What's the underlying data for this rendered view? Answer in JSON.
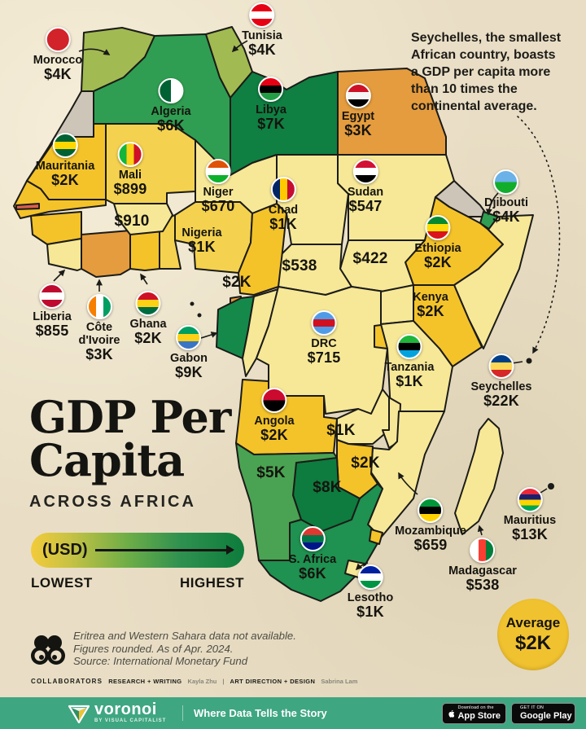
{
  "title": {
    "line1": "GDP Per",
    "line2": "Capita",
    "subtitle": "ACROSS AFRICA"
  },
  "legend": {
    "unit_label": "(USD)",
    "low_label": "LOWEST",
    "high_label": "HIGHEST",
    "gradient_colors": [
      "#f3cb3a",
      "#6fae47",
      "#0d7c3c"
    ]
  },
  "annotation": {
    "line1": "Seychelles, the smallest",
    "line2": "African country, boasts",
    "line3": "a GDP per capita more",
    "line4_pre": "than ",
    "line4_bold": "10 times",
    "line4_post": " the",
    "line5": "continental average."
  },
  "average_badge": {
    "label": "Average",
    "value": "$2K",
    "color": "#f1c230"
  },
  "chart_data": {
    "type": "choropleth-map",
    "title": "GDP Per Capita Across Africa",
    "unit": "USD",
    "entries": [
      {
        "id": "morocco",
        "name": "Morocco",
        "value": "$4K",
        "fill": "#a2ba52",
        "flag": {
          "dir": "h",
          "colors": [
            "#d2232a"
          ]
        }
      },
      {
        "id": "tunisia",
        "name": "Tunisia",
        "value": "$4K",
        "fill": "#a2ba52",
        "flag": {
          "dir": "h",
          "colors": [
            "#e70013",
            "#ffffff",
            "#e70013"
          ]
        }
      },
      {
        "id": "algeria",
        "name": "Algeria",
        "value": "$6K",
        "fill": "#2f9e52",
        "flag": {
          "dir": "v",
          "colors": [
            "#006233",
            "#ffffff"
          ]
        }
      },
      {
        "id": "libya",
        "name": "Libya",
        "value": "$7K",
        "fill": "#0f7f42",
        "flag": {
          "dir": "h",
          "colors": [
            "#e70013",
            "#000000",
            "#239e46"
          ]
        }
      },
      {
        "id": "egypt",
        "name": "Egypt",
        "value": "$3K",
        "fill": "#e59c3e",
        "flag": {
          "dir": "h",
          "colors": [
            "#ce1126",
            "#f5f5f5",
            "#000000"
          ]
        }
      },
      {
        "id": "mauritania",
        "name": "Mauritania",
        "value": "$2K",
        "fill": "#f4c32a",
        "flag": {
          "dir": "h",
          "colors": [
            "#006233",
            "#ffd700",
            "#006233"
          ]
        }
      },
      {
        "id": "mali",
        "name": "Mali",
        "value": "$899",
        "fill": "#f4d24f",
        "flag": {
          "dir": "v",
          "colors": [
            "#14b53a",
            "#fcd116",
            "#ce1126"
          ]
        }
      },
      {
        "id": "niger",
        "name": "Niger",
        "value": "$670",
        "fill": "#f7e897",
        "flag": {
          "dir": "h",
          "colors": [
            "#e05206",
            "#ffffff",
            "#0db02b"
          ]
        }
      },
      {
        "id": "chad",
        "name": "Chad",
        "value": "$1K",
        "fill": "#f7e897",
        "flag": {
          "dir": "v",
          "colors": [
            "#002664",
            "#ffcb00",
            "#c60c30"
          ]
        }
      },
      {
        "id": "sudan",
        "name": "Sudan",
        "value": "$547",
        "fill": "#f7e897",
        "flag": {
          "dir": "h",
          "colors": [
            "#d21034",
            "#ffffff",
            "#000000"
          ]
        }
      },
      {
        "id": "djibouti",
        "name": "Djibouti",
        "value": "$4K",
        "fill": "#2f9e52",
        "flag": {
          "dir": "h",
          "colors": [
            "#6ab2e7",
            "#12ad2b"
          ]
        }
      },
      {
        "id": "ethiopia",
        "name": "Ethiopia",
        "value": "$2K",
        "fill": "#f4c32a",
        "flag": {
          "dir": "h",
          "colors": [
            "#078930",
            "#fcdd09",
            "#da121a"
          ]
        }
      },
      {
        "id": "liberia",
        "name": "Liberia",
        "value": "$855",
        "fill": "#f7e897",
        "flag": {
          "dir": "h",
          "colors": [
            "#bf0a30",
            "#ffffff",
            "#bf0a30"
          ]
        }
      },
      {
        "id": "civ",
        "name": "Côte d'Ivoire",
        "value": "$3K",
        "fill": "#e59c3e",
        "flag": {
          "dir": "v",
          "colors": [
            "#f77f00",
            "#ffffff",
            "#009e60"
          ]
        }
      },
      {
        "id": "ghana",
        "name": "Ghana",
        "value": "$2K",
        "fill": "#f4c32a",
        "flag": {
          "dir": "h",
          "colors": [
            "#ce1126",
            "#fcd116",
            "#006b3f"
          ]
        }
      },
      {
        "id": "gabon",
        "name": "Gabon",
        "value": "$9K",
        "fill": "#15894a",
        "flag": {
          "dir": "h",
          "colors": [
            "#009e60",
            "#fcd116",
            "#3a75c4"
          ]
        }
      },
      {
        "id": "drc",
        "name": "DRC",
        "value": "$715",
        "fill": "#f7e897",
        "flag": {
          "dir": "h",
          "colors": [
            "#4f9be8",
            "#ce1021",
            "#4f9be8"
          ]
        }
      },
      {
        "id": "tanzania",
        "name": "Tanzania",
        "value": "$1K",
        "fill": "#f7e897",
        "flag": {
          "dir": "h",
          "colors": [
            "#1eb53a",
            "#000000",
            "#00a3dd"
          ]
        }
      },
      {
        "id": "seychelles",
        "name": "Seychelles",
        "value": "$22K",
        "fill": null,
        "flag": {
          "dir": "h",
          "colors": [
            "#003f87",
            "#fcd856",
            "#d62828"
          ]
        }
      },
      {
        "id": "angola",
        "name": "Angola",
        "value": "$2K",
        "fill": "#f4c32a",
        "flag": {
          "dir": "h",
          "colors": [
            "#cc092f",
            "#000000"
          ]
        }
      },
      {
        "id": "mozambique",
        "name": "Mozambique",
        "value": "$659",
        "fill": "#f7e897",
        "flag": {
          "dir": "h",
          "colors": [
            "#009639",
            "#000000",
            "#ffd100"
          ]
        }
      },
      {
        "id": "mauritius",
        "name": "Mauritius",
        "value": "$13K",
        "fill": null,
        "flag": {
          "dir": "h",
          "colors": [
            "#ea2839",
            "#1a206d",
            "#ffd500",
            "#00a551"
          ]
        }
      },
      {
        "id": "madagascar",
        "name": "Madagascar",
        "value": "$538",
        "fill": "#f7e897",
        "flag": {
          "dir": "v",
          "colors": [
            "#ffffff",
            "#fc3d32",
            "#007e3a"
          ]
        }
      },
      {
        "id": "safrica",
        "name": "S. Africa",
        "value": "$6K",
        "fill": "#1f9150",
        "flag": {
          "dir": "h",
          "colors": [
            "#de3831",
            "#007749",
            "#001489"
          ]
        }
      },
      {
        "id": "lesotho",
        "name": "Lesotho",
        "value": "$1K",
        "fill": "#f7e897",
        "flag": {
          "dir": "h",
          "colors": [
            "#00209f",
            "#ffffff",
            "#009543"
          ]
        }
      },
      {
        "id": "nigeria",
        "name": "Nigeria",
        "value": "$1K",
        "fill": "#f4d24f",
        "flag": null
      },
      {
        "id": "kenya",
        "name": "Kenya",
        "value": "$2K",
        "fill": "#f4c32a",
        "flag": null
      },
      {
        "id": "burkina",
        "name": null,
        "value": "$910",
        "fill": "#f7e897",
        "flag": null
      },
      {
        "id": "car",
        "name": null,
        "value": "$538",
        "fill": "#f7e897",
        "flag": null
      },
      {
        "id": "ssudan",
        "name": null,
        "value": "$422",
        "fill": "#f7e897",
        "flag": null
      },
      {
        "id": "cameroon",
        "name": null,
        "value": "$2K",
        "fill": "#f4c32a",
        "flag": null
      },
      {
        "id": "zambia",
        "name": null,
        "value": "$1K",
        "fill": "#f7e897",
        "flag": null
      },
      {
        "id": "zimbabwe",
        "name": null,
        "value": "$2K",
        "fill": "#f4c32a",
        "flag": null
      },
      {
        "id": "namibia",
        "name": null,
        "value": "$5K",
        "fill": "#4aa352",
        "flag": null
      },
      {
        "id": "botswana",
        "name": null,
        "value": "$8K",
        "fill": "#0d7c3e",
        "flag": null
      }
    ],
    "average": {
      "label": "Average",
      "value": "$2K"
    }
  },
  "no_data_color": "#cdc5b8",
  "region_fills": {
    "westsahara": "#cdc5b8",
    "eritrea": "#cdc5b8",
    "somalia": "#f7e897",
    "uganda": "#f7e897",
    "rwanda": "#f4c32a",
    "malawi": "#f7e897",
    "congo": "#f7e897",
    "benin": "#f4d24f",
    "guinea": "#f4c32a",
    "senegal": "#f4c32a",
    "liberia_sl": "#f7e897",
    "eqguinea": "#e59c3e",
    "eswatini": "#f4c32a",
    "gambia": "#d9604e"
  },
  "footnote": {
    "line1": "Eritrea and Western Sahara data not available.",
    "line2": "Figures rounded. As of Apr. 2024.",
    "line3": "Source: International Monetary Fund"
  },
  "collaborators": {
    "heading": "COLLABORATORS",
    "research_label": "RESEARCH + WRITING",
    "research_name": "Kayla Zhu",
    "divider": "|",
    "design_label": "ART DIRECTION + DESIGN",
    "design_name": "Sabrina Lam"
  },
  "footer_bar": {
    "brand": "voronoi",
    "brand_sub": "BY VISUAL CAPITALIST",
    "tagline": "Where Data Tells the Story",
    "appstore_line1": "Download on the",
    "appstore_line2": "App Store",
    "googleplay_line1": "GET IT ON",
    "googleplay_line2": "Google Play",
    "bar_color": "#3fa682"
  }
}
